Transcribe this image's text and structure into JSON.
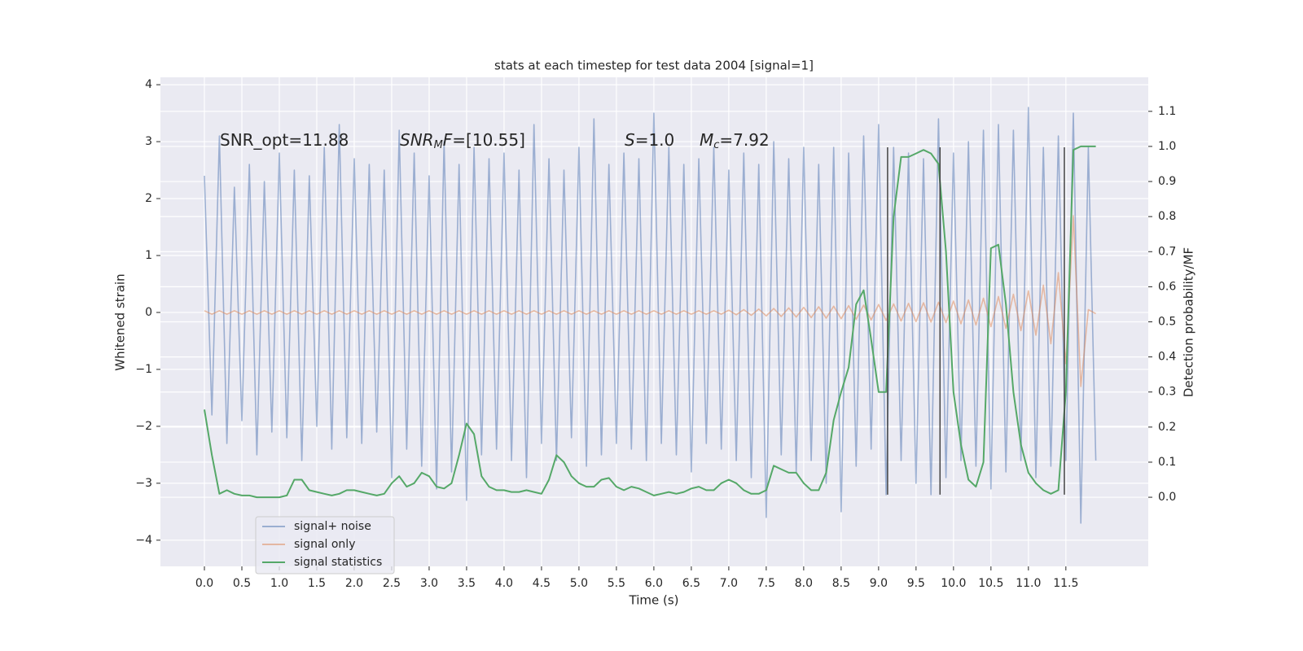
{
  "chart_data": {
    "type": "line",
    "title": "stats at each timestep for test data 2004 [signal=1]",
    "xlabel": "Time (s)",
    "ylabel": "Whitened strain",
    "y2label": "Detection probability/MF",
    "x": [
      0,
      0.1,
      0.2,
      0.3,
      0.4,
      0.5,
      0.6,
      0.7,
      0.8,
      0.9,
      1,
      1.1,
      1.2,
      1.3,
      1.4,
      1.5,
      1.6,
      1.7,
      1.8,
      1.9,
      2,
      2.1,
      2.2,
      2.3,
      2.4,
      2.5,
      2.6,
      2.7,
      2.8,
      2.9,
      3,
      3.1,
      3.2,
      3.3,
      3.4,
      3.5,
      3.6,
      3.7,
      3.8,
      3.9,
      4,
      4.1,
      4.2,
      4.3,
      4.4,
      4.5,
      4.6,
      4.7,
      4.8,
      4.9,
      5,
      5.1,
      5.2,
      5.3,
      5.4,
      5.5,
      5.6,
      5.7,
      5.8,
      5.9,
      6,
      6.1,
      6.2,
      6.3,
      6.4,
      6.5,
      6.6,
      6.7,
      6.8,
      6.9,
      7,
      7.1,
      7.2,
      7.3,
      7.4,
      7.5,
      7.6,
      7.7,
      7.8,
      7.9,
      8,
      8.1,
      8.2,
      8.3,
      8.4,
      8.5,
      8.6,
      8.7,
      8.8,
      8.9,
      9,
      9.1,
      9.2,
      9.3,
      9.4,
      9.5,
      9.6,
      9.7,
      9.8,
      9.9,
      10,
      10.1,
      10.2,
      10.3,
      10.4,
      10.5,
      10.6,
      10.7,
      10.8,
      10.9,
      11,
      11.1,
      11.2,
      11.3,
      11.4,
      11.5,
      11.6,
      11.7,
      11.8,
      11.9
    ],
    "series": [
      {
        "name": "signal+ noise",
        "color": "#4c72b0",
        "alpha": 0.5,
        "values": [
          2.4,
          -1.8,
          3.1,
          -2.3,
          2.2,
          -1.9,
          2.6,
          -2.5,
          2.3,
          -2.1,
          2.8,
          -2.2,
          2.5,
          -2.6,
          2.4,
          -2.0,
          2.9,
          -2.4,
          3.3,
          -2.2,
          2.7,
          -2.3,
          2.6,
          -2.1,
          2.5,
          -2.9,
          3.2,
          -2.4,
          2.8,
          -2.7,
          2.4,
          -3.1,
          3.0,
          -2.8,
          2.6,
          -3.3,
          2.9,
          -2.5,
          2.7,
          -2.4,
          2.8,
          -2.6,
          2.5,
          -2.9,
          3.3,
          -2.3,
          2.7,
          -2.6,
          2.5,
          -2.2,
          2.9,
          -2.7,
          3.4,
          -2.5,
          2.6,
          -2.3,
          2.8,
          -2.4,
          2.7,
          -2.6,
          3.5,
          -2.3,
          2.9,
          -2.5,
          2.6,
          -2.8,
          2.7,
          -2.3,
          2.9,
          -2.4,
          2.5,
          -2.6,
          2.8,
          -2.9,
          2.6,
          -3.6,
          3.0,
          -2.5,
          2.7,
          -2.8,
          2.9,
          -2.6,
          2.6,
          -3.0,
          2.9,
          -3.5,
          2.8,
          -2.7,
          3.1,
          -2.4,
          3.3,
          -3.2,
          2.9,
          -2.6,
          2.8,
          -3.0,
          2.7,
          -3.2,
          3.4,
          -2.9,
          2.8,
          -2.6,
          3.0,
          -2.7,
          3.2,
          -3.1,
          3.3,
          -2.8,
          3.2,
          -2.6,
          3.6,
          -2.9,
          2.9,
          -2.7,
          3.1,
          -2.6,
          3.5,
          -3.7,
          2.9,
          -2.6
        ]
      },
      {
        "name": "signal only",
        "color": "#dd8452",
        "alpha": 0.5,
        "values": [
          0.03,
          -0.03,
          0.03,
          -0.03,
          0.03,
          -0.03,
          0.03,
          -0.03,
          0.03,
          -0.03,
          0.03,
          -0.03,
          0.03,
          -0.03,
          0.03,
          -0.03,
          0.03,
          -0.03,
          0.03,
          -0.03,
          0.03,
          -0.03,
          0.03,
          -0.03,
          0.03,
          -0.03,
          0.03,
          -0.03,
          0.03,
          -0.03,
          0.03,
          -0.03,
          0.03,
          -0.03,
          0.03,
          -0.03,
          0.03,
          -0.03,
          0.03,
          -0.03,
          0.03,
          -0.03,
          0.03,
          -0.03,
          0.03,
          -0.03,
          0.03,
          -0.03,
          0.03,
          -0.03,
          0.03,
          -0.03,
          0.03,
          -0.03,
          0.03,
          -0.03,
          0.03,
          -0.03,
          0.03,
          -0.03,
          0.03,
          -0.03,
          0.03,
          -0.03,
          0.03,
          -0.03,
          0.03,
          -0.03,
          0.03,
          -0.03,
          0.04,
          -0.04,
          0.05,
          -0.05,
          0.06,
          -0.06,
          0.07,
          -0.07,
          0.08,
          -0.08,
          0.09,
          -0.09,
          0.1,
          -0.1,
          0.11,
          -0.11,
          0.12,
          -0.12,
          0.13,
          -0.13,
          0.14,
          -0.14,
          0.15,
          -0.15,
          0.16,
          -0.16,
          0.17,
          -0.17,
          0.18,
          -0.18,
          0.2,
          -0.2,
          0.22,
          -0.22,
          0.25,
          -0.25,
          0.28,
          -0.28,
          0.32,
          -0.32,
          0.38,
          -0.4,
          0.48,
          -0.55,
          0.7,
          -0.9,
          1.7,
          -1.3,
          0.05,
          -0.02
        ]
      },
      {
        "name": "signal statistics",
        "color": "#55a868",
        "alpha": 1,
        "axis": "y2",
        "values": [
          0.25,
          0.12,
          0.01,
          0.02,
          0.01,
          0.005,
          0.005,
          0,
          0,
          0,
          0,
          0.005,
          0.05,
          0.05,
          0.02,
          0.015,
          0.01,
          0.005,
          0.01,
          0.02,
          0.02,
          0.015,
          0.01,
          0.005,
          0.01,
          0.04,
          0.06,
          0.03,
          0.04,
          0.07,
          0.06,
          0.03,
          0.025,
          0.04,
          0.12,
          0.21,
          0.18,
          0.06,
          0.03,
          0.02,
          0.02,
          0.015,
          0.015,
          0.02,
          0.015,
          0.01,
          0.05,
          0.12,
          0.1,
          0.06,
          0.04,
          0.03,
          0.03,
          0.05,
          0.055,
          0.03,
          0.02,
          0.03,
          0.025,
          0.015,
          0.005,
          0.01,
          0.015,
          0.01,
          0.015,
          0.025,
          0.03,
          0.02,
          0.02,
          0.04,
          0.05,
          0.04,
          0.02,
          0.01,
          0.01,
          0.02,
          0.09,
          0.08,
          0.07,
          0.07,
          0.04,
          0.02,
          0.02,
          0.07,
          0.22,
          0.3,
          0.37,
          0.55,
          0.59,
          0.45,
          0.3,
          0.3,
          0.8,
          0.97,
          0.97,
          0.98,
          0.99,
          0.98,
          0.95,
          0.7,
          0.3,
          0.15,
          0.05,
          0.03,
          0.1,
          0.71,
          0.72,
          0.55,
          0.3,
          0.15,
          0.07,
          0.04,
          0.02,
          0.01,
          0.02,
          0.3,
          0.99,
          1.0,
          1.0,
          1.0
        ]
      }
    ],
    "vlines": {
      "x": [
        9.12,
        9.82,
        11.48
      ],
      "ymin": -3.2,
      "ymax": 2.9,
      "color": "#444444"
    },
    "annotations": [
      [
        {
          "text": "SNR_opt=11.88"
        }
      ],
      [
        {
          "text": "SNR",
          "style": "italic"
        },
        {
          "text": "M",
          "style": "sub"
        },
        {
          "text": "F",
          "style": "italic"
        },
        {
          "text": "=[10.55]"
        }
      ],
      [
        {
          "text": "S",
          "style": "italic"
        },
        {
          "text": "=1.0"
        }
      ],
      [
        {
          "text": "M",
          "style": "italic"
        },
        {
          "text": "c",
          "style": "sub"
        },
        {
          "text": "=7.92"
        }
      ]
    ],
    "xlim": [
      -0.587,
      12.6
    ],
    "ylim": [
      -4.46,
      4.13
    ],
    "y2lim": [
      -0.197,
      1.197
    ],
    "xticks": [
      {
        "value": 0,
        "label": "0.0"
      },
      0.5,
      {
        "value": 1,
        "label": "1.0"
      },
      1.5,
      {
        "value": 2,
        "label": "2.0"
      },
      2.5,
      {
        "value": 3,
        "label": "3.0"
      },
      3.5,
      {
        "value": 4,
        "label": "4.0"
      },
      4.5,
      {
        "value": 5,
        "label": "5.0"
      },
      5.5,
      {
        "value": 6,
        "label": "6.0"
      },
      6.5,
      {
        "value": 7,
        "label": "7.0"
      },
      7.5,
      {
        "value": 8,
        "label": "8.0"
      },
      8.5,
      {
        "value": 9,
        "label": "9.0"
      },
      9.5,
      {
        "value": 10,
        "label": "10.0"
      },
      10.5,
      {
        "value": 11,
        "label": "11.0"
      },
      11.5
    ],
    "yticks": [
      {
        "value": -4,
        "label": "−4"
      },
      {
        "value": -3,
        "label": "−3"
      },
      {
        "value": -2,
        "label": "−2"
      },
      {
        "value": -1,
        "label": "−1"
      },
      0,
      1,
      2,
      3,
      4
    ],
    "y2ticks": [
      {
        "value": 0,
        "label": "0.0"
      },
      0.1,
      0.2,
      0.3,
      0.4,
      0.5,
      0.6,
      0.7,
      0.8,
      0.9,
      {
        "value": 1,
        "label": "1.0"
      },
      1.1
    ],
    "grid": true,
    "legend": "lower left"
  }
}
